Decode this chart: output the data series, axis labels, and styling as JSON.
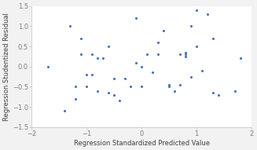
{
  "x_values": [
    -1.7,
    -1.4,
    -1.3,
    -1.2,
    -1.2,
    -1.1,
    -1.1,
    -1.0,
    -1.0,
    -0.9,
    -0.9,
    -0.8,
    -0.8,
    -0.7,
    -0.6,
    -0.6,
    -0.5,
    -0.5,
    -0.4,
    -0.3,
    -0.2,
    -0.1,
    -0.1,
    0.0,
    0.0,
    0.1,
    0.2,
    0.3,
    0.3,
    0.4,
    0.5,
    0.5,
    0.6,
    0.7,
    0.7,
    0.8,
    0.8,
    0.8,
    0.9,
    0.9,
    1.0,
    1.0,
    1.1,
    1.2,
    1.3,
    1.3,
    1.4,
    1.7,
    1.8
  ],
  "y_values": [
    0.0,
    -1.1,
    1.0,
    -0.5,
    -0.8,
    0.3,
    0.7,
    -0.5,
    -0.2,
    -0.2,
    0.3,
    -0.6,
    0.2,
    0.2,
    0.5,
    -0.65,
    -0.7,
    -0.3,
    -0.85,
    -0.3,
    -0.5,
    1.2,
    0.1,
    0.0,
    -0.5,
    0.3,
    -0.15,
    0.6,
    0.3,
    0.9,
    -0.45,
    -0.5,
    -0.6,
    0.3,
    -0.45,
    0.25,
    0.35,
    0.3,
    1.0,
    -0.25,
    1.4,
    0.5,
    -0.1,
    1.3,
    0.7,
    -0.65,
    -0.7,
    -0.6,
    0.2
  ],
  "dot_color": "#4472C4",
  "dot_size": 5,
  "xlabel": "Regression Standardized Predicted Value",
  "ylabel": "Regression Studentized Residual",
  "xlim": [
    -2,
    2
  ],
  "ylim": [
    -1.5,
    1.5
  ],
  "xticks": [
    -2,
    -1,
    0,
    1,
    2
  ],
  "yticks": [
    -1.5,
    -1.0,
    -0.5,
    0.0,
    0.5,
    1.0,
    1.5
  ],
  "bg_color": "#f2f2f2",
  "plot_bg_color": "#ffffff",
  "xlabel_fontsize": 6,
  "ylabel_fontsize": 6,
  "tick_fontsize": 6,
  "spine_color": "#c0c0c0",
  "tick_color": "#808080",
  "label_color": "#404040"
}
